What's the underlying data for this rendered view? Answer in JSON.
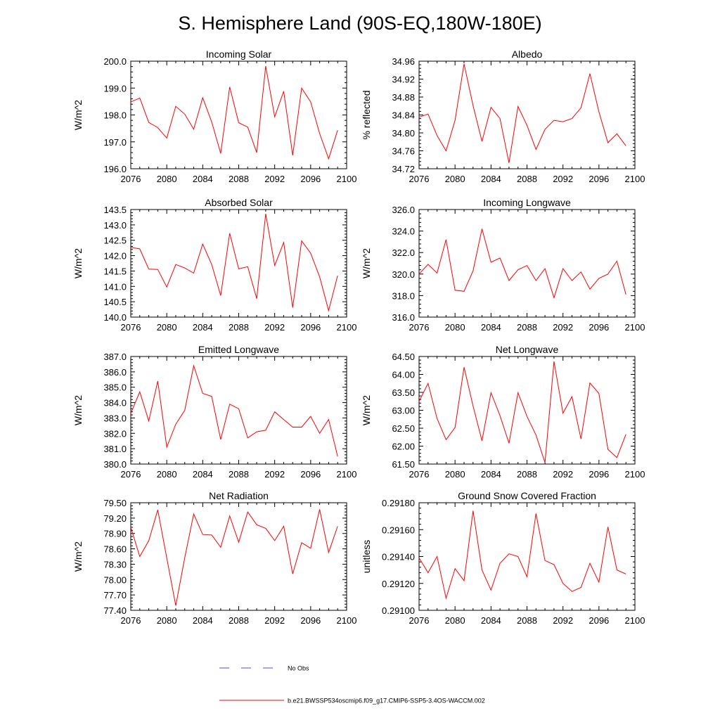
{
  "figure": {
    "title": "S. Hemisphere Land (90S-EQ,180W-180E)",
    "line_color": "#ff0000",
    "obs_color": "#4a4aff",
    "legend": [
      {
        "label": "No Obs",
        "style": "dashed"
      },
      {
        "label": "b.e21.BWSSP534oscmip6.f09_g17.CMIP6-SSP5-3.4OS-WACCM.002",
        "style": "solid"
      }
    ]
  },
  "chart_data": [
    {
      "type": "line",
      "title": "Incoming Solar",
      "ylabel": "W/m^2",
      "xlim": [
        2076,
        2100
      ],
      "ylim": [
        196.0,
        200.0
      ],
      "xticks": [
        2076,
        2080,
        2084,
        2088,
        2092,
        2096,
        2100
      ],
      "xtick_labels": [
        "2076",
        "2080",
        "2084",
        "2088",
        "2092",
        "2096",
        "2100"
      ],
      "yticks": [
        196.0,
        197.0,
        198.0,
        199.0,
        200.0
      ],
      "ytick_labels": [
        "196.0",
        "197.0",
        "198.0",
        "199.0",
        "200.0"
      ],
      "x": [
        2076,
        2077,
        2078,
        2079,
        2080,
        2081,
        2082,
        2083,
        2084,
        2085,
        2086,
        2087,
        2088,
        2089,
        2090,
        2091,
        2092,
        2093,
        2094,
        2095,
        2096,
        2097,
        2098,
        2099
      ],
      "values": [
        198.48,
        198.63,
        197.72,
        197.53,
        197.14,
        198.32,
        198.03,
        197.47,
        198.64,
        197.74,
        196.57,
        199.04,
        197.71,
        197.55,
        196.6,
        199.82,
        197.93,
        198.88,
        196.5,
        199.0,
        198.49,
        197.31,
        196.37,
        197.43
      ]
    },
    {
      "type": "line",
      "title": "Albedo",
      "ylabel": "% reflected",
      "xlim": [
        2076,
        2100
      ],
      "ylim": [
        34.72,
        34.96
      ],
      "xticks": [
        2076,
        2080,
        2084,
        2088,
        2092,
        2096,
        2100
      ],
      "xtick_labels": [
        "2076",
        "2080",
        "2084",
        "2088",
        "2092",
        "2096",
        "2100"
      ],
      "yticks": [
        34.72,
        34.76,
        34.8,
        34.84,
        34.88,
        34.92,
        34.96
      ],
      "ytick_labels": [
        "34.72",
        "34.76",
        "34.80",
        "34.84",
        "34.88",
        "34.92",
        "34.96"
      ],
      "x": [
        2076,
        2077,
        2078,
        2079,
        2080,
        2081,
        2082,
        2083,
        2084,
        2085,
        2086,
        2087,
        2088,
        2089,
        2090,
        2091,
        2092,
        2093,
        2094,
        2095,
        2096,
        2097,
        2098,
        2099
      ],
      "values": [
        34.835,
        34.842,
        34.794,
        34.76,
        34.828,
        34.954,
        34.861,
        34.781,
        34.857,
        34.832,
        34.733,
        34.859,
        34.817,
        34.763,
        34.808,
        34.828,
        34.825,
        34.832,
        34.856,
        34.932,
        34.847,
        34.778,
        34.798,
        34.771
      ]
    },
    {
      "type": "line",
      "title": "Absorbed Solar",
      "ylabel": "W/m^2",
      "xlim": [
        2076,
        2100
      ],
      "ylim": [
        140.0,
        143.5
      ],
      "xticks": [
        2076,
        2080,
        2084,
        2088,
        2092,
        2096,
        2100
      ],
      "xtick_labels": [
        "2076",
        "2080",
        "2084",
        "2088",
        "2092",
        "2096",
        "2100"
      ],
      "yticks": [
        140.0,
        140.5,
        141.0,
        141.5,
        142.0,
        142.5,
        143.0,
        143.5
      ],
      "ytick_labels": [
        "140.0",
        "140.5",
        "141.0",
        "141.5",
        "142.0",
        "142.5",
        "143.0",
        "143.5"
      ],
      "x": [
        2076,
        2077,
        2078,
        2079,
        2080,
        2081,
        2082,
        2083,
        2084,
        2085,
        2086,
        2087,
        2088,
        2089,
        2090,
        2091,
        2092,
        2093,
        2094,
        2095,
        2096,
        2097,
        2098,
        2099
      ],
      "values": [
        142.27,
        142.22,
        141.56,
        141.55,
        140.98,
        141.71,
        141.6,
        141.43,
        142.38,
        141.71,
        140.7,
        142.73,
        141.57,
        141.64,
        140.6,
        143.36,
        141.68,
        142.43,
        140.31,
        142.48,
        142.08,
        141.31,
        140.21,
        141.35
      ]
    },
    {
      "type": "line",
      "title": "Incoming Longwave",
      "ylabel": "W/m^2",
      "xlim": [
        2076,
        2100
      ],
      "ylim": [
        316.0,
        326.0
      ],
      "xticks": [
        2076,
        2080,
        2084,
        2088,
        2092,
        2096,
        2100
      ],
      "xtick_labels": [
        "2076",
        "2080",
        "2084",
        "2088",
        "2092",
        "2096",
        "2100"
      ],
      "yticks": [
        316.0,
        318.0,
        320.0,
        322.0,
        324.0,
        326.0
      ],
      "ytick_labels": [
        "316.0",
        "318.0",
        "320.0",
        "322.0",
        "324.0",
        "326.0"
      ],
      "x": [
        2076,
        2077,
        2078,
        2079,
        2080,
        2081,
        2082,
        2083,
        2084,
        2085,
        2086,
        2087,
        2088,
        2089,
        2090,
        2091,
        2092,
        2093,
        2094,
        2095,
        2096,
        2097,
        2098,
        2099
      ],
      "values": [
        320.0,
        320.9,
        320.1,
        323.2,
        318.5,
        318.4,
        320.3,
        324.2,
        321.1,
        321.5,
        319.4,
        320.4,
        320.8,
        319.4,
        320.5,
        317.8,
        320.5,
        319.4,
        320.2,
        318.6,
        319.6,
        320.0,
        321.2,
        318.1
      ]
    },
    {
      "type": "line",
      "title": "Emitted Longwave",
      "ylabel": "W/m^2",
      "xlim": [
        2076,
        2100
      ],
      "ylim": [
        380.0,
        387.0
      ],
      "xticks": [
        2076,
        2080,
        2084,
        2088,
        2092,
        2096,
        2100
      ],
      "xtick_labels": [
        "2076",
        "2080",
        "2084",
        "2088",
        "2092",
        "2096",
        "2100"
      ],
      "yticks": [
        380.0,
        381.0,
        382.0,
        383.0,
        384.0,
        385.0,
        386.0,
        387.0
      ],
      "ytick_labels": [
        "380.0",
        "381.0",
        "382.0",
        "383.0",
        "384.0",
        "385.0",
        "386.0",
        "387.0"
      ],
      "x": [
        2076,
        2077,
        2078,
        2079,
        2080,
        2081,
        2082,
        2083,
        2084,
        2085,
        2086,
        2087,
        2088,
        2089,
        2090,
        2091,
        2092,
        2093,
        2094,
        2095,
        2096,
        2097,
        2098,
        2099
      ],
      "values": [
        383.3,
        384.7,
        382.8,
        385.4,
        381.1,
        382.6,
        383.5,
        386.4,
        384.6,
        384.4,
        381.6,
        383.9,
        383.6,
        381.7,
        382.1,
        382.2,
        383.4,
        382.9,
        382.4,
        382.4,
        383.1,
        382.0,
        382.9,
        380.5
      ]
    },
    {
      "type": "line",
      "title": "Net Longwave",
      "ylabel": "W/m^2",
      "xlim": [
        2076,
        2100
      ],
      "ylim": [
        61.5,
        64.5
      ],
      "xticks": [
        2076,
        2080,
        2084,
        2088,
        2092,
        2096,
        2100
      ],
      "xtick_labels": [
        "2076",
        "2080",
        "2084",
        "2088",
        "2092",
        "2096",
        "2100"
      ],
      "yticks": [
        61.5,
        62.0,
        62.5,
        63.0,
        63.5,
        64.0,
        64.5
      ],
      "ytick_labels": [
        "61.50",
        "62.00",
        "62.50",
        "63.00",
        "63.50",
        "64.00",
        "64.50"
      ],
      "x": [
        2076,
        2077,
        2078,
        2079,
        2080,
        2081,
        2082,
        2083,
        2084,
        2085,
        2086,
        2087,
        2088,
        2089,
        2090,
        2091,
        2092,
        2093,
        2094,
        2095,
        2096,
        2097,
        2098,
        2099
      ],
      "values": [
        63.25,
        63.75,
        62.77,
        62.18,
        62.52,
        64.2,
        63.12,
        62.15,
        63.49,
        62.85,
        62.08,
        63.49,
        62.83,
        62.31,
        61.54,
        64.36,
        62.92,
        63.38,
        62.2,
        63.76,
        63.47,
        61.91,
        61.68,
        62.33
      ]
    },
    {
      "type": "line",
      "title": "Net Radiation",
      "ylabel": "W/m^2",
      "xlim": [
        2076,
        2100
      ],
      "ylim": [
        77.4,
        79.5
      ],
      "xticks": [
        2076,
        2080,
        2084,
        2088,
        2092,
        2096,
        2100
      ],
      "xtick_labels": [
        "2076",
        "2080",
        "2084",
        "2088",
        "2092",
        "2096",
        "2100"
      ],
      "yticks": [
        77.4,
        77.7,
        78.0,
        78.3,
        78.6,
        78.9,
        79.2,
        79.5
      ],
      "ytick_labels": [
        "77.40",
        "77.70",
        "78.00",
        "78.30",
        "78.60",
        "78.90",
        "79.20",
        "79.50"
      ],
      "x": [
        2076,
        2077,
        2078,
        2079,
        2080,
        2081,
        2082,
        2083,
        2084,
        2085,
        2086,
        2087,
        2088,
        2089,
        2090,
        2091,
        2092,
        2093,
        2094,
        2095,
        2096,
        2097,
        2098,
        2099
      ],
      "values": [
        79.02,
        78.45,
        78.76,
        79.36,
        78.42,
        77.49,
        78.43,
        79.28,
        78.88,
        78.87,
        78.63,
        79.24,
        78.73,
        79.32,
        79.07,
        79.0,
        78.76,
        79.04,
        78.11,
        78.72,
        78.61,
        79.37,
        78.53,
        79.04
      ]
    },
    {
      "type": "line",
      "title": "Ground Snow Covered Fraction",
      "ylabel": "unitless",
      "xlim": [
        2076,
        2100
      ],
      "ylim": [
        0.291,
        0.2918
      ],
      "xticks": [
        2076,
        2080,
        2084,
        2088,
        2092,
        2096,
        2100
      ],
      "xtick_labels": [
        "2076",
        "2080",
        "2084",
        "2088",
        "2092",
        "2096",
        "2100"
      ],
      "yticks": [
        0.291,
        0.2912,
        0.2914,
        0.2916,
        0.2918
      ],
      "ytick_labels": [
        "0.29100",
        "0.29120",
        "0.29140",
        "0.29160",
        "0.29180"
      ],
      "x": [
        2076,
        2077,
        2078,
        2079,
        2080,
        2081,
        2082,
        2083,
        2084,
        2085,
        2086,
        2087,
        2088,
        2089,
        2090,
        2091,
        2092,
        2093,
        2094,
        2095,
        2096,
        2097,
        2098,
        2099
      ],
      "values": [
        0.29139,
        0.29128,
        0.2914,
        0.29109,
        0.29131,
        0.29122,
        0.29174,
        0.2913,
        0.29115,
        0.29135,
        0.29142,
        0.2914,
        0.29125,
        0.29172,
        0.29137,
        0.29134,
        0.2912,
        0.29114,
        0.29117,
        0.29135,
        0.29121,
        0.29162,
        0.2913,
        0.29127
      ]
    }
  ]
}
